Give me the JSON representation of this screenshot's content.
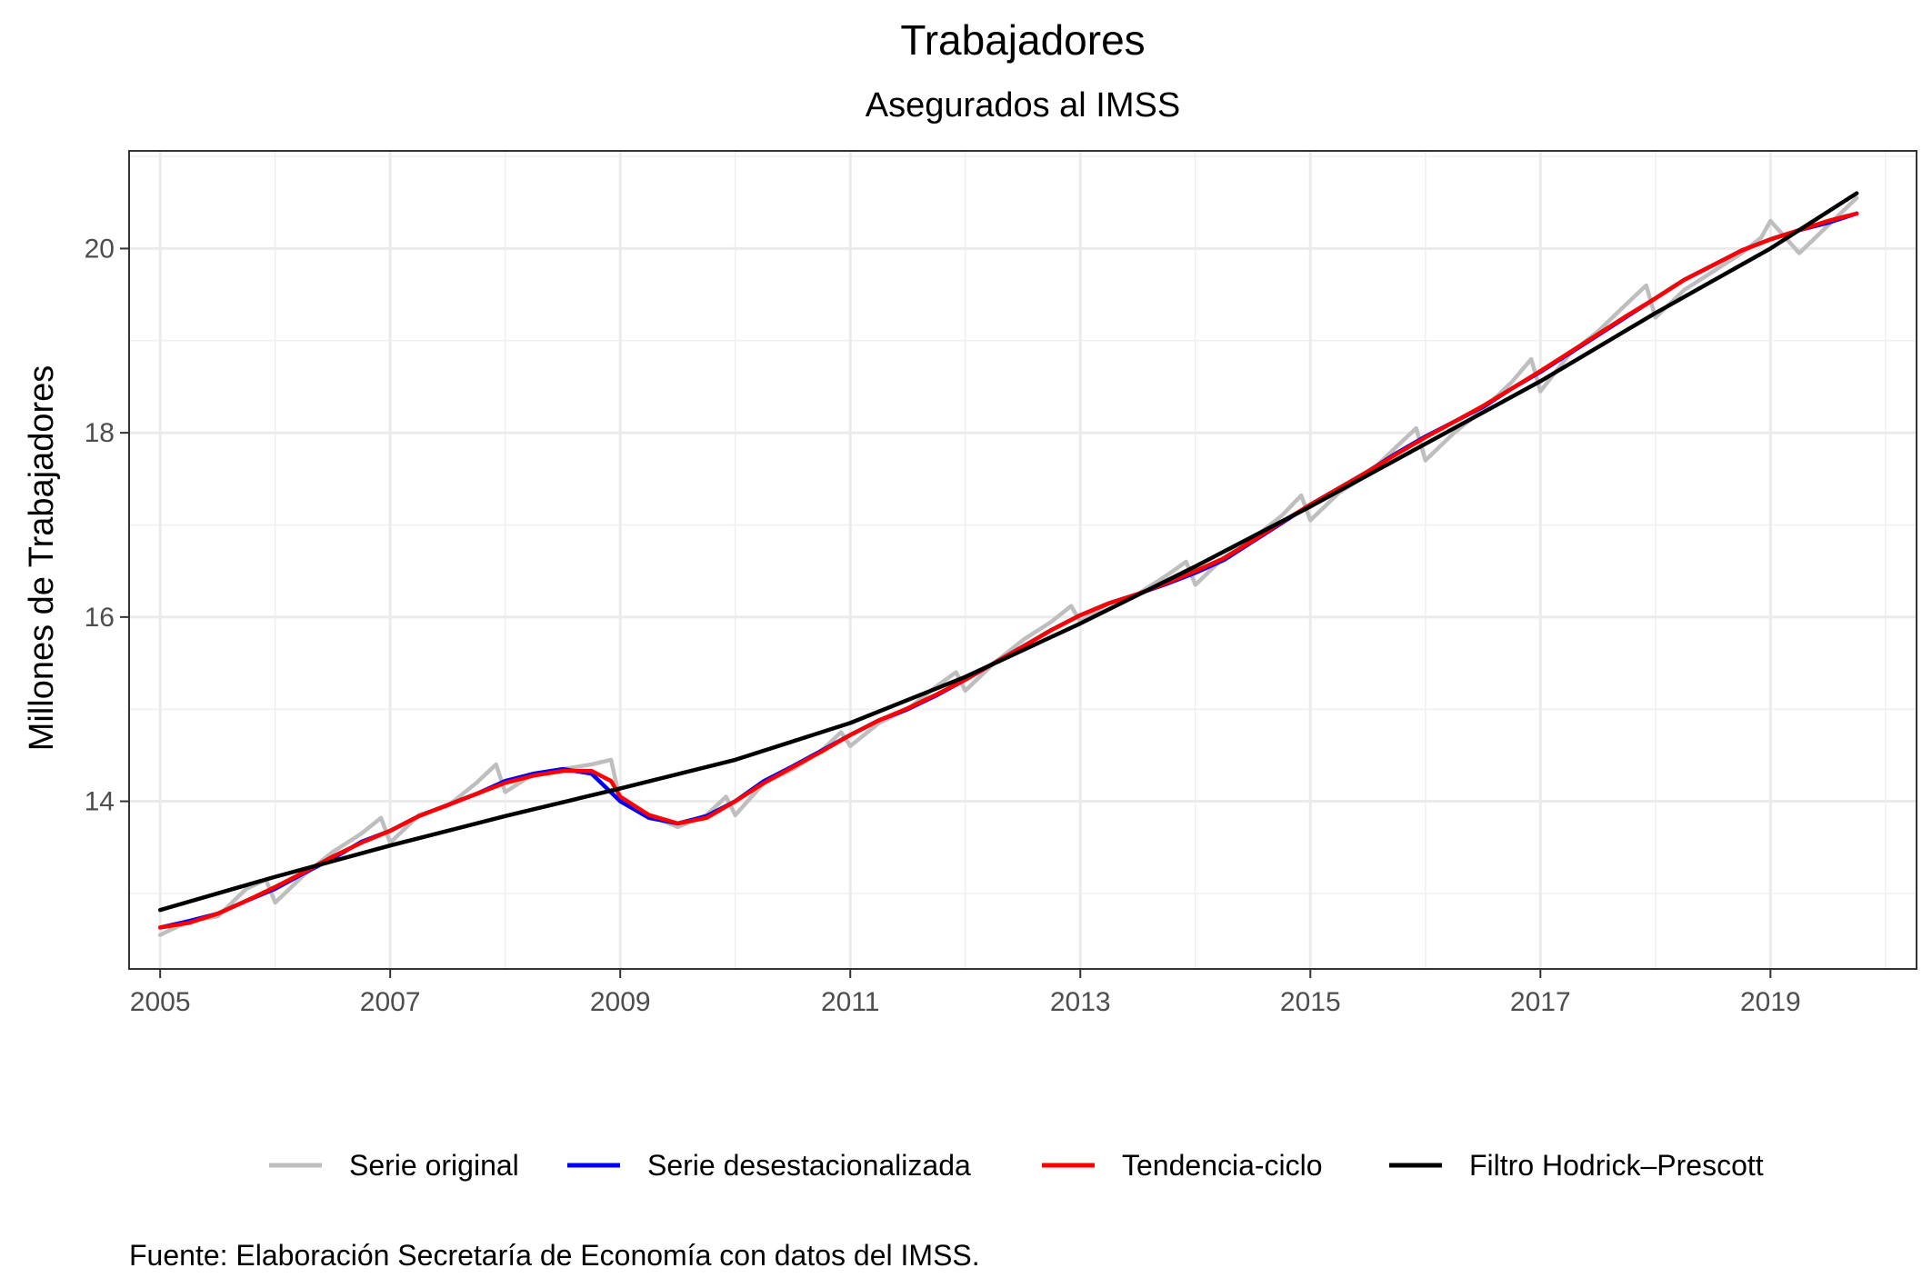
{
  "chart_data": {
    "type": "line",
    "title": "Trabajadores",
    "subtitle": "Asegurados al IMSS",
    "xlabel": "",
    "ylabel": "Millones de Trabajadores",
    "caption": "Fuente: Elaboración Secretaría de Economía con datos del IMSS.",
    "xlim": [
      2004.73,
      2020.27
    ],
    "ylim": [
      12.18,
      21.06
    ],
    "x_ticks": [
      2005,
      2007,
      2009,
      2011,
      2013,
      2015,
      2017,
      2019
    ],
    "y_ticks": [
      14,
      16,
      18,
      20
    ],
    "grid": true,
    "legend_position": "bottom",
    "series": [
      {
        "name": "Serie original",
        "color": "#bebebe",
        "x": [
          2005.0,
          2005.25,
          2005.5,
          2005.75,
          2005.92,
          2006.0,
          2006.25,
          2006.5,
          2006.75,
          2006.92,
          2007.0,
          2007.25,
          2007.5,
          2007.75,
          2007.92,
          2008.0,
          2008.25,
          2008.5,
          2008.75,
          2008.92,
          2009.0,
          2009.25,
          2009.5,
          2009.75,
          2009.92,
          2010.0,
          2010.25,
          2010.5,
          2010.75,
          2010.92,
          2011.0,
          2011.25,
          2011.5,
          2011.75,
          2011.92,
          2012.0,
          2012.25,
          2012.5,
          2012.75,
          2012.92,
          2013.0,
          2013.25,
          2013.5,
          2013.75,
          2013.92,
          2014.0,
          2014.25,
          2014.5,
          2014.75,
          2014.92,
          2015.0,
          2015.25,
          2015.5,
          2015.75,
          2015.92,
          2016.0,
          2016.25,
          2016.5,
          2016.75,
          2016.92,
          2017.0,
          2017.25,
          2017.5,
          2017.75,
          2017.92,
          2018.0,
          2018.25,
          2018.5,
          2018.75,
          2018.92,
          2019.0,
          2019.25,
          2019.5,
          2019.75
        ],
        "y": [
          12.55,
          12.7,
          12.75,
          13.05,
          13.15,
          12.9,
          13.2,
          13.45,
          13.65,
          13.82,
          13.55,
          13.85,
          13.95,
          14.2,
          14.4,
          14.1,
          14.3,
          14.35,
          14.4,
          14.45,
          14.0,
          13.85,
          13.72,
          13.85,
          14.05,
          13.85,
          14.2,
          14.35,
          14.55,
          14.75,
          14.6,
          14.85,
          15.0,
          15.25,
          15.4,
          15.2,
          15.5,
          15.75,
          15.95,
          16.12,
          15.95,
          16.15,
          16.25,
          16.45,
          16.6,
          16.35,
          16.65,
          16.85,
          17.1,
          17.32,
          17.05,
          17.35,
          17.55,
          17.85,
          18.05,
          17.7,
          18.0,
          18.25,
          18.55,
          18.8,
          18.45,
          18.85,
          19.1,
          19.4,
          19.6,
          19.25,
          19.55,
          19.75,
          19.95,
          20.12,
          20.3,
          19.95,
          20.25,
          20.55
        ]
      },
      {
        "name": "Serie desestacionalizada",
        "color": "#0000ff",
        "x": [
          2005.0,
          2005.25,
          2005.5,
          2005.75,
          2006.0,
          2006.25,
          2006.5,
          2006.75,
          2007.0,
          2007.25,
          2007.5,
          2007.75,
          2008.0,
          2008.25,
          2008.5,
          2008.75,
          2009.0,
          2009.25,
          2009.5,
          2009.75,
          2010.0,
          2010.25,
          2010.5,
          2010.75,
          2011.0,
          2011.25,
          2011.5,
          2011.75,
          2012.0,
          2012.25,
          2012.5,
          2012.75,
          2013.0,
          2013.25,
          2013.5,
          2013.75,
          2014.0,
          2014.25,
          2014.5,
          2014.75,
          2015.0,
          2015.25,
          2015.5,
          2015.75,
          2016.0,
          2016.25,
          2016.5,
          2016.75,
          2017.0,
          2017.25,
          2017.5,
          2017.75,
          2018.0,
          2018.25,
          2018.5,
          2018.75,
          2019.0,
          2019.25,
          2019.5,
          2019.75
        ],
        "y": [
          12.63,
          12.7,
          12.78,
          12.92,
          13.05,
          13.22,
          13.38,
          13.56,
          13.68,
          13.84,
          13.96,
          14.08,
          14.22,
          14.3,
          14.35,
          14.3,
          14.0,
          13.82,
          13.76,
          13.84,
          14.0,
          14.22,
          14.38,
          14.55,
          14.72,
          14.88,
          15.0,
          15.15,
          15.32,
          15.5,
          15.68,
          15.86,
          16.02,
          16.15,
          16.25,
          16.36,
          16.48,
          16.62,
          16.82,
          17.02,
          17.22,
          17.4,
          17.58,
          17.78,
          17.96,
          18.12,
          18.28,
          18.48,
          18.66,
          18.86,
          19.06,
          19.26,
          19.46,
          19.66,
          19.82,
          19.98,
          20.1,
          20.2,
          20.28,
          20.38
        ]
      },
      {
        "name": "Tendencia-ciclo",
        "color": "#ff0000",
        "x": [
          2005.0,
          2005.25,
          2005.5,
          2005.75,
          2006.0,
          2006.25,
          2006.5,
          2006.75,
          2007.0,
          2007.25,
          2007.5,
          2007.75,
          2008.0,
          2008.25,
          2008.5,
          2008.75,
          2008.92,
          2009.0,
          2009.25,
          2009.5,
          2009.75,
          2010.0,
          2010.25,
          2010.5,
          2010.75,
          2011.0,
          2011.25,
          2011.5,
          2011.75,
          2012.0,
          2012.25,
          2012.5,
          2012.75,
          2013.0,
          2013.25,
          2013.5,
          2013.75,
          2014.0,
          2014.25,
          2014.5,
          2014.75,
          2015.0,
          2015.25,
          2015.5,
          2015.75,
          2016.0,
          2016.25,
          2016.5,
          2016.75,
          2017.0,
          2017.25,
          2017.5,
          2017.75,
          2018.0,
          2018.25,
          2018.5,
          2018.75,
          2019.0,
          2019.25,
          2019.5,
          2019.75
        ],
        "y": [
          12.63,
          12.68,
          12.78,
          12.92,
          13.07,
          13.23,
          13.4,
          13.55,
          13.68,
          13.84,
          13.96,
          14.08,
          14.2,
          14.28,
          14.33,
          14.33,
          14.22,
          14.05,
          13.85,
          13.76,
          13.82,
          14.0,
          14.2,
          14.37,
          14.54,
          14.72,
          14.88,
          15.01,
          15.16,
          15.32,
          15.5,
          15.68,
          15.86,
          16.02,
          16.15,
          16.25,
          16.37,
          16.5,
          16.64,
          16.83,
          17.03,
          17.22,
          17.4,
          17.58,
          17.77,
          17.95,
          18.12,
          18.29,
          18.48,
          18.67,
          18.87,
          19.07,
          19.27,
          19.46,
          19.66,
          19.82,
          19.98,
          20.1,
          20.2,
          20.3,
          20.38
        ]
      },
      {
        "name": "Filtro Hodrick–Prescott",
        "color": "#000000",
        "x": [
          2005.0,
          2006.0,
          2007.0,
          2008.0,
          2009.0,
          2010.0,
          2011.0,
          2012.0,
          2013.0,
          2014.0,
          2015.0,
          2016.0,
          2017.0,
          2018.0,
          2019.0,
          2019.75
        ],
        "y": [
          12.82,
          13.18,
          13.52,
          13.84,
          14.14,
          14.45,
          14.85,
          15.35,
          15.93,
          16.55,
          17.2,
          17.88,
          18.56,
          19.3,
          20.0,
          20.6
        ]
      }
    ]
  }
}
